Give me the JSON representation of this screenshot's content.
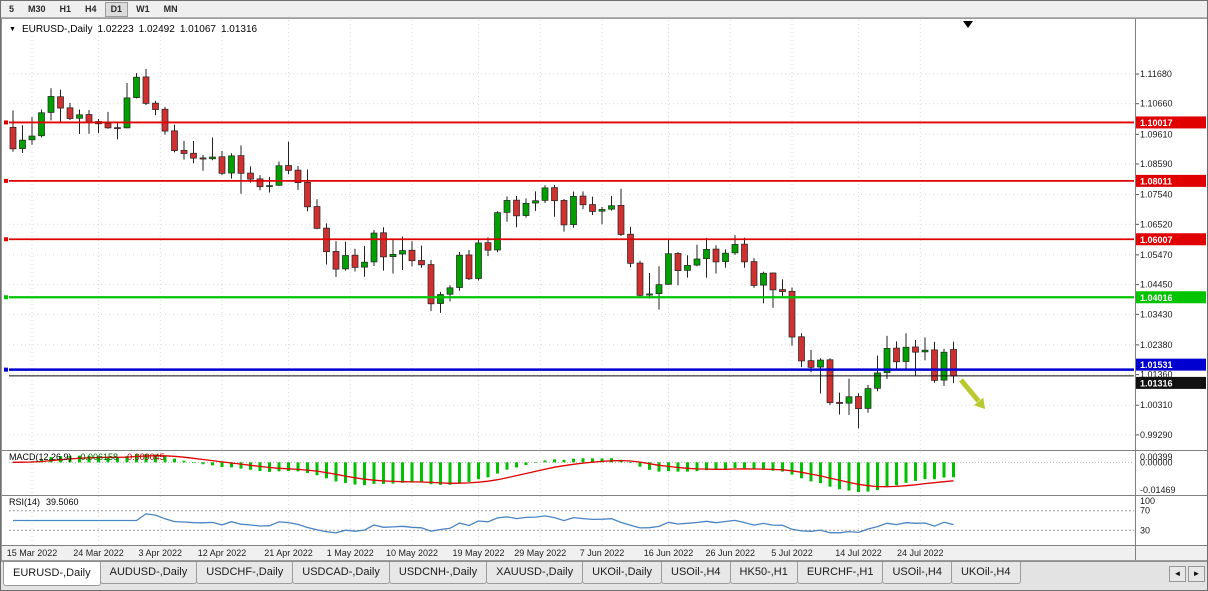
{
  "toolbar": {
    "timeframes": [
      {
        "label": "5",
        "active": false
      },
      {
        "label": "M30",
        "active": false
      },
      {
        "label": "H1",
        "active": false
      },
      {
        "label": "H4",
        "active": false
      },
      {
        "label": "D1",
        "active": true
      },
      {
        "label": "W1",
        "active": false
      },
      {
        "label": "MN",
        "active": false
      }
    ]
  },
  "title_bar": {
    "dropdown_icon": "▼",
    "symbol": "EURUSD-,Daily",
    "open": "1.02223",
    "high": "1.02492",
    "low": "1.01067",
    "close": "1.01316"
  },
  "chart": {
    "price_axis": [
      "1.11680",
      "1.10660",
      "1.09610",
      "1.08590",
      "1.07540",
      "1.06520",
      "1.05470",
      "1.04450",
      "1.03430",
      "1.02380",
      "1.01360",
      "1.00310",
      "0.99290"
    ],
    "dates": [
      "15 Mar 2022",
      "24 Mar 2022",
      "3 Apr 2022",
      "12 Apr 2022",
      "21 Apr 2022",
      "1 May 2022",
      "10 May 2022",
      "19 May 2022",
      "29 May 2022",
      "7 Jun 2022",
      "16 Jun 2022",
      "26 Jun 2022",
      "5 Jul 2022",
      "14 Jul 2022",
      "24 Jul 2022"
    ],
    "hlines": [
      {
        "price": 1.10017,
        "label": "1.10017",
        "color": "#E00000",
        "width": 1.8
      },
      {
        "price": 1.08011,
        "label": "1.08011",
        "color": "#E00000",
        "width": 1.8
      },
      {
        "price": 1.06007,
        "label": "1.06007",
        "color": "#E00000",
        "width": 1.8
      },
      {
        "price": 1.04016,
        "label": "1.04016",
        "color": "#00C400",
        "width": 2.2
      },
      {
        "price": 1.01531,
        "label": "1.01531",
        "color": "#0000D0",
        "width": 2.5
      }
    ],
    "bid": {
      "price": 1.01316,
      "label": "1.01316",
      "color": "#111111"
    }
  },
  "chart_data": {
    "type": "candlestick",
    "symbol": "EURUSD",
    "timeframe": "Daily",
    "date_tick_indices": [
      2,
      9,
      15.5,
      22,
      29,
      35.5,
      42,
      49,
      55.5,
      62,
      69,
      75.5,
      82,
      89,
      95.5
    ],
    "candles": [
      [
        1.0985,
        1.1043,
        1.0901,
        1.0911
      ],
      [
        1.0912,
        1.0992,
        1.0897,
        1.0941
      ],
      [
        1.0942,
        1.102,
        1.0925,
        1.0955
      ],
      [
        1.0956,
        1.1046,
        1.095,
        1.1035
      ],
      [
        1.1036,
        1.1119,
        1.1009,
        1.1091
      ],
      [
        1.109,
        1.1114,
        1.1003,
        1.1051
      ],
      [
        1.1052,
        1.1069,
        1.101,
        1.1015
      ],
      [
        1.1016,
        1.1046,
        1.0962,
        1.1028
      ],
      [
        1.1029,
        1.1044,
        1.0963,
        1.1004
      ],
      [
        1.1005,
        1.1014,
        1.0965,
        1.0997
      ],
      [
        1.0998,
        1.1038,
        1.098,
        1.0983
      ],
      [
        1.0984,
        1.0999,
        1.0944,
        1.0982
      ],
      [
        1.0983,
        1.1137,
        1.0982,
        1.1086
      ],
      [
        1.1087,
        1.1171,
        1.1084,
        1.1157
      ],
      [
        1.1158,
        1.1185,
        1.1061,
        1.1067
      ],
      [
        1.1068,
        1.1076,
        1.1027,
        1.1046
      ],
      [
        1.1047,
        1.1055,
        1.096,
        1.0972
      ],
      [
        1.0973,
        1.0994,
        1.0899,
        1.0905
      ],
      [
        1.0906,
        1.0938,
        1.0874,
        1.0895
      ],
      [
        1.0896,
        1.0938,
        1.0862,
        1.0879
      ],
      [
        1.088,
        1.089,
        1.0836,
        1.0876
      ],
      [
        1.0877,
        1.095,
        1.0872,
        1.0883
      ],
      [
        1.0884,
        1.0904,
        1.0821,
        1.0827
      ],
      [
        1.0828,
        1.0896,
        1.0809,
        1.0887
      ],
      [
        1.0888,
        1.0923,
        1.0757,
        1.0827
      ],
      [
        1.0828,
        1.0851,
        1.0795,
        1.0807
      ],
      [
        1.0808,
        1.0821,
        1.0769,
        1.0781
      ],
      [
        1.0782,
        1.0815,
        1.0761,
        1.0785
      ],
      [
        1.0786,
        1.0867,
        1.0784,
        1.0853
      ],
      [
        1.0854,
        1.0936,
        1.0824,
        1.0837
      ],
      [
        1.0838,
        1.0852,
        1.077,
        1.0795
      ],
      [
        1.0796,
        1.084,
        1.0697,
        1.0712
      ],
      [
        1.0713,
        1.0738,
        1.0635,
        1.0638
      ],
      [
        1.0639,
        1.0655,
        1.0514,
        1.0558
      ],
      [
        1.0559,
        1.0594,
        1.0471,
        1.0498
      ],
      [
        1.0499,
        1.0592,
        1.0493,
        1.0545
      ],
      [
        1.0546,
        1.0568,
        1.049,
        1.0504
      ],
      [
        1.0505,
        1.0578,
        1.0472,
        1.0522
      ],
      [
        1.0523,
        1.0632,
        1.0509,
        1.0622
      ],
      [
        1.0623,
        1.0642,
        1.0493,
        1.054
      ],
      [
        1.0541,
        1.0599,
        1.0483,
        1.0549
      ],
      [
        1.055,
        1.061,
        1.0495,
        1.0562
      ],
      [
        1.0563,
        1.0594,
        1.0507,
        1.0527
      ],
      [
        1.0528,
        1.0579,
        1.0503,
        1.0513
      ],
      [
        1.0514,
        1.0529,
        1.0354,
        1.0379
      ],
      [
        1.038,
        1.042,
        1.0348,
        1.0411
      ],
      [
        1.0412,
        1.0443,
        1.0387,
        1.0434
      ],
      [
        1.0435,
        1.0557,
        1.0424,
        1.0546
      ],
      [
        1.0547,
        1.0564,
        1.0461,
        1.0465
      ],
      [
        1.0466,
        1.0599,
        1.0459,
        1.0588
      ],
      [
        1.0589,
        1.0607,
        1.0543,
        1.0563
      ],
      [
        1.0564,
        1.0697,
        1.0556,
        1.0692
      ],
      [
        1.0693,
        1.0748,
        1.0661,
        1.0734
      ],
      [
        1.0735,
        1.0749,
        1.0642,
        1.0681
      ],
      [
        1.0682,
        1.0741,
        1.0675,
        1.0724
      ],
      [
        1.0725,
        1.0765,
        1.0698,
        1.0733
      ],
      [
        1.0734,
        1.0786,
        1.0725,
        1.0777
      ],
      [
        1.0778,
        1.0787,
        1.0678,
        1.0733
      ],
      [
        1.0734,
        1.0739,
        1.0627,
        1.065
      ],
      [
        1.0651,
        1.0764,
        1.064,
        1.0748
      ],
      [
        1.0749,
        1.0765,
        1.0704,
        1.0719
      ],
      [
        1.072,
        1.0747,
        1.0684,
        1.0696
      ],
      [
        1.0697,
        1.0712,
        1.0652,
        1.0703
      ],
      [
        1.0704,
        1.075,
        1.0699,
        1.0716
      ],
      [
        1.0717,
        1.0774,
        1.0612,
        1.0617
      ],
      [
        1.0618,
        1.0643,
        1.0505,
        1.0518
      ],
      [
        1.0519,
        1.0527,
        1.0399,
        1.0408
      ],
      [
        1.0409,
        1.0485,
        1.0397,
        1.0413
      ],
      [
        1.0414,
        1.0508,
        1.0359,
        1.0445
      ],
      [
        1.0446,
        1.0601,
        1.0444,
        1.0551
      ],
      [
        1.0552,
        1.0557,
        1.0443,
        1.0493
      ],
      [
        1.0494,
        1.0546,
        1.0469,
        1.0511
      ],
      [
        1.0512,
        1.0582,
        1.0508,
        1.0533
      ],
      [
        1.0534,
        1.0605,
        1.0469,
        1.0566
      ],
      [
        1.0567,
        1.058,
        1.0483,
        1.0523
      ],
      [
        1.0524,
        1.0566,
        1.0503,
        1.0553
      ],
      [
        1.0554,
        1.0615,
        1.0547,
        1.0583
      ],
      [
        1.0584,
        1.0606,
        1.0503,
        1.0523
      ],
      [
        1.0524,
        1.0536,
        1.0434,
        1.0442
      ],
      [
        1.0443,
        1.0489,
        1.0381,
        1.0484
      ],
      [
        1.0485,
        1.0486,
        1.0365,
        1.0427
      ],
      [
        1.0428,
        1.0463,
        1.0405,
        1.0421
      ],
      [
        1.0422,
        1.0435,
        1.0235,
        1.0265
      ],
      [
        1.0266,
        1.0278,
        1.0162,
        1.0183
      ],
      [
        1.0184,
        1.0221,
        1.0144,
        1.0161
      ],
      [
        1.0162,
        1.0192,
        1.0071,
        1.0186
      ],
      [
        1.0187,
        1.0192,
        1.0032,
        1.004
      ],
      [
        1.0041,
        1.0074,
        0.9999,
        1.0037
      ],
      [
        1.0038,
        1.0122,
        0.9998,
        1.006
      ],
      [
        1.0061,
        1.0072,
        0.9952,
        1.0019
      ],
      [
        1.002,
        1.0101,
        1.0005,
        1.0088
      ],
      [
        1.0089,
        1.0201,
        1.0079,
        1.0142
      ],
      [
        1.0143,
        1.0269,
        1.0121,
        1.0226
      ],
      [
        1.0227,
        1.025,
        1.0155,
        1.018
      ],
      [
        1.0181,
        1.0278,
        1.0152,
        1.023
      ],
      [
        1.0231,
        1.0255,
        1.0131,
        1.0213
      ],
      [
        1.0214,
        1.0264,
        1.0185,
        1.022
      ],
      [
        1.0221,
        1.0249,
        1.0108,
        1.0116
      ],
      [
        1.0117,
        1.0225,
        1.0097,
        1.0213
      ],
      [
        1.02223,
        1.02492,
        1.01067,
        1.01316
      ]
    ]
  },
  "macd": {
    "label": "MACD(12,26,9)",
    "value_main": "-0.006158",
    "value_signal": "-0.009045",
    "axis_labels": [
      "0.00399",
      "0.00000",
      "-0.01469"
    ],
    "fast": 12,
    "slow": 26,
    "signal": 9
  },
  "rsi": {
    "label": "RSI(14)",
    "value": "39.5060",
    "period": 14,
    "levels": [
      70,
      30
    ],
    "axis_labels": [
      "100",
      "70",
      "30"
    ]
  },
  "tabs": [
    {
      "label": "EURUSD-,Daily",
      "active": true
    },
    {
      "label": "AUDUSD-,Daily",
      "active": false
    },
    {
      "label": "USDCHF-,Daily",
      "active": false
    },
    {
      "label": "USDCAD-,Daily",
      "active": false
    },
    {
      "label": "USDCNH-,Daily",
      "active": false
    },
    {
      "label": "XAUUSD-,Daily",
      "active": false
    },
    {
      "label": "UKOil-,Daily",
      "active": false
    },
    {
      "label": "USOil-,H4",
      "active": false
    },
    {
      "label": "HK50-,H1",
      "active": false
    },
    {
      "label": "EURCHF-,H1",
      "active": false
    },
    {
      "label": "USOil-,H4",
      "active": false
    },
    {
      "label": "UKOil-,H4",
      "active": false
    }
  ],
  "tab_nav": {
    "left": "◄",
    "right": "►"
  },
  "colors": {
    "candle_up": "#00A000",
    "candle_down": "#D03030",
    "outline": "#222222",
    "grid": "#DBDBDB",
    "macd_histogram": "#00C000",
    "macd_signal": "#E00000",
    "rsi_line": "#4A84C4",
    "arrow": "#B9C92F",
    "axis_text": "#1A1A1A",
    "bid_line": "#111111",
    "separator": "#808080"
  }
}
